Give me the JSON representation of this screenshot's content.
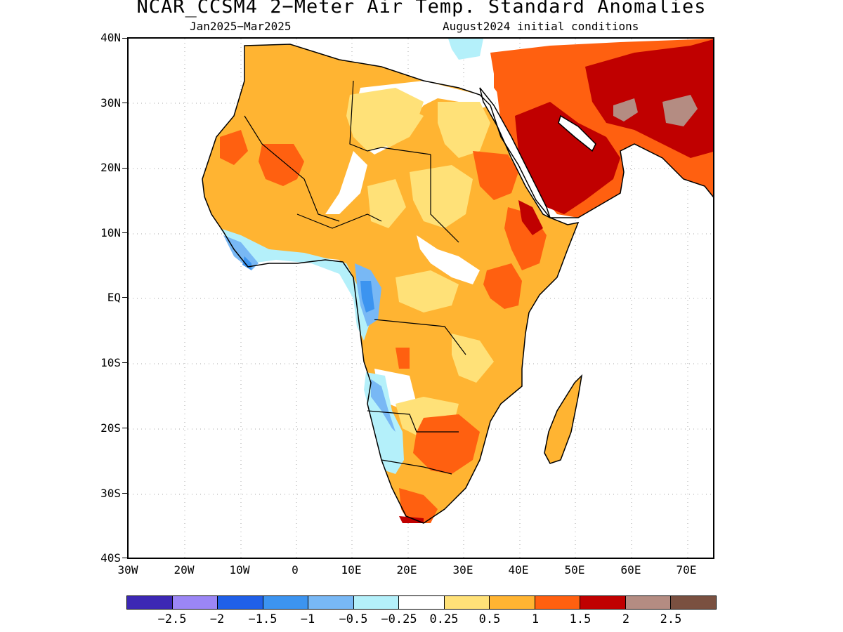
{
  "title": "NCAR_CCSM4 2−Meter Air Temp. Standard Anomalies",
  "subtitle_left": "Jan2025−Mar2025",
  "subtitle_right": "August2024 initial conditions",
  "lat_labels": [
    "40N",
    "30N",
    "20N",
    "10N",
    "EQ",
    "10S",
    "20S",
    "30S",
    "40S"
  ],
  "lon_labels": [
    "30W",
    "20W",
    "10W",
    "0",
    "10E",
    "20E",
    "30E",
    "40E",
    "50E",
    "60E",
    "70E"
  ],
  "map_extent": {
    "lon_min": -30,
    "lon_max": 75,
    "lat_min": -40,
    "lat_max": 40
  },
  "colorbar": {
    "colors": [
      "#3c28b4",
      "#9b86f5",
      "#2060e8",
      "#3c94f0",
      "#78b8f5",
      "#b4f0fa",
      "#ffffff",
      "#ffe178",
      "#ffb432",
      "#ff6010",
      "#c00000",
      "#b48c82",
      "#7a5040"
    ],
    "labels": [
      "−2.5",
      "−2",
      "−1.5",
      "−1",
      "−0.5",
      "−0.25",
      "0.25",
      "0.5",
      "1",
      "1.5",
      "2",
      "2.5"
    ]
  }
}
